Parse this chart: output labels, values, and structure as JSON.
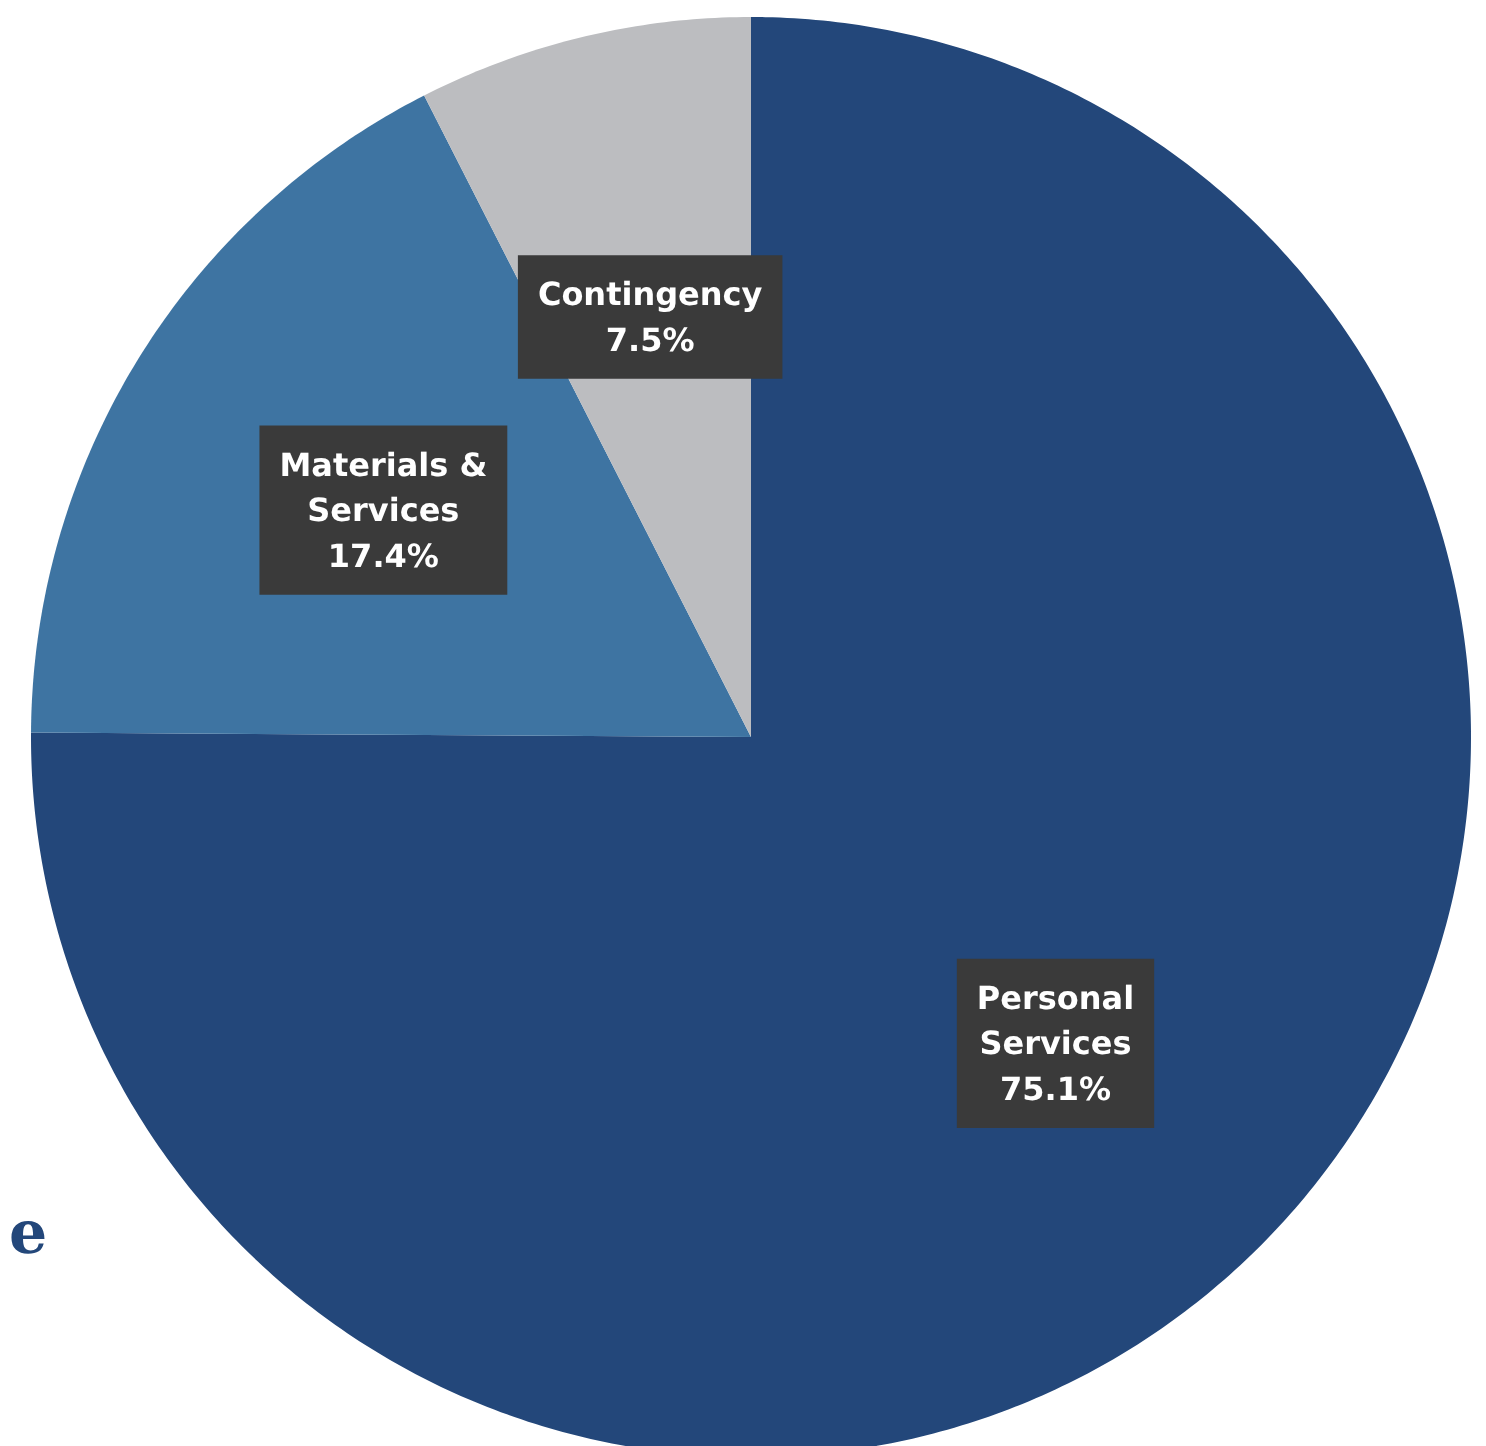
{
  "chart_data": {
    "type": "pie",
    "categories": [
      "Personal Services",
      "Materials & Services",
      "Contingency"
    ],
    "values": [
      75.1,
      17.4,
      7.5
    ],
    "colors": [
      "#23477a",
      "#3e74a2",
      "#bcbdc0"
    ],
    "value_labels": [
      "75.1%",
      "17.4%",
      "7.5%"
    ],
    "annotations": [
      "e"
    ]
  }
}
